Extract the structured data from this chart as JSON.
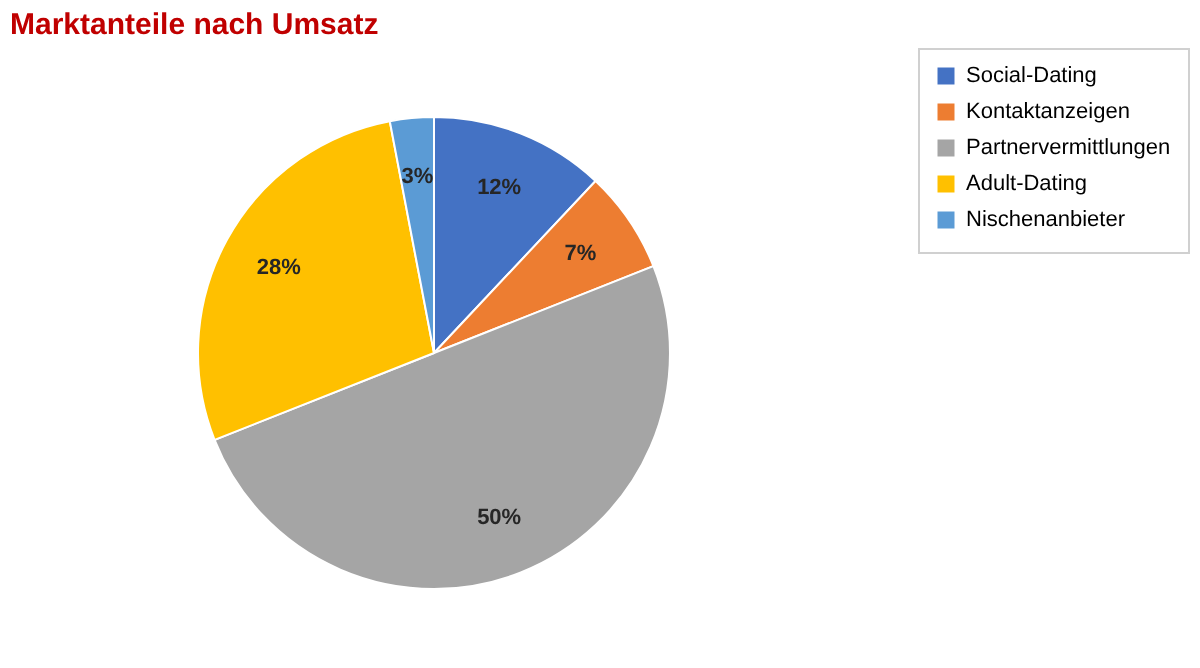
{
  "chart_data": {
    "type": "pie",
    "title": "Marktanteile nach Umsatz",
    "categories": [
      "Social-Dating",
      "Kontaktanzeigen",
      "Partnervermittlungen",
      "Adult-Dating",
      "Nischenanbieter"
    ],
    "values": [
      12,
      7,
      50,
      28,
      3
    ],
    "colors": [
      "#4472c4",
      "#ed7d31",
      "#a5a5a5",
      "#ffc000",
      "#5b9bd5"
    ],
    "value_labels": [
      "12%",
      "7%",
      "50%",
      "28%",
      "3%"
    ],
    "legend": "right"
  }
}
